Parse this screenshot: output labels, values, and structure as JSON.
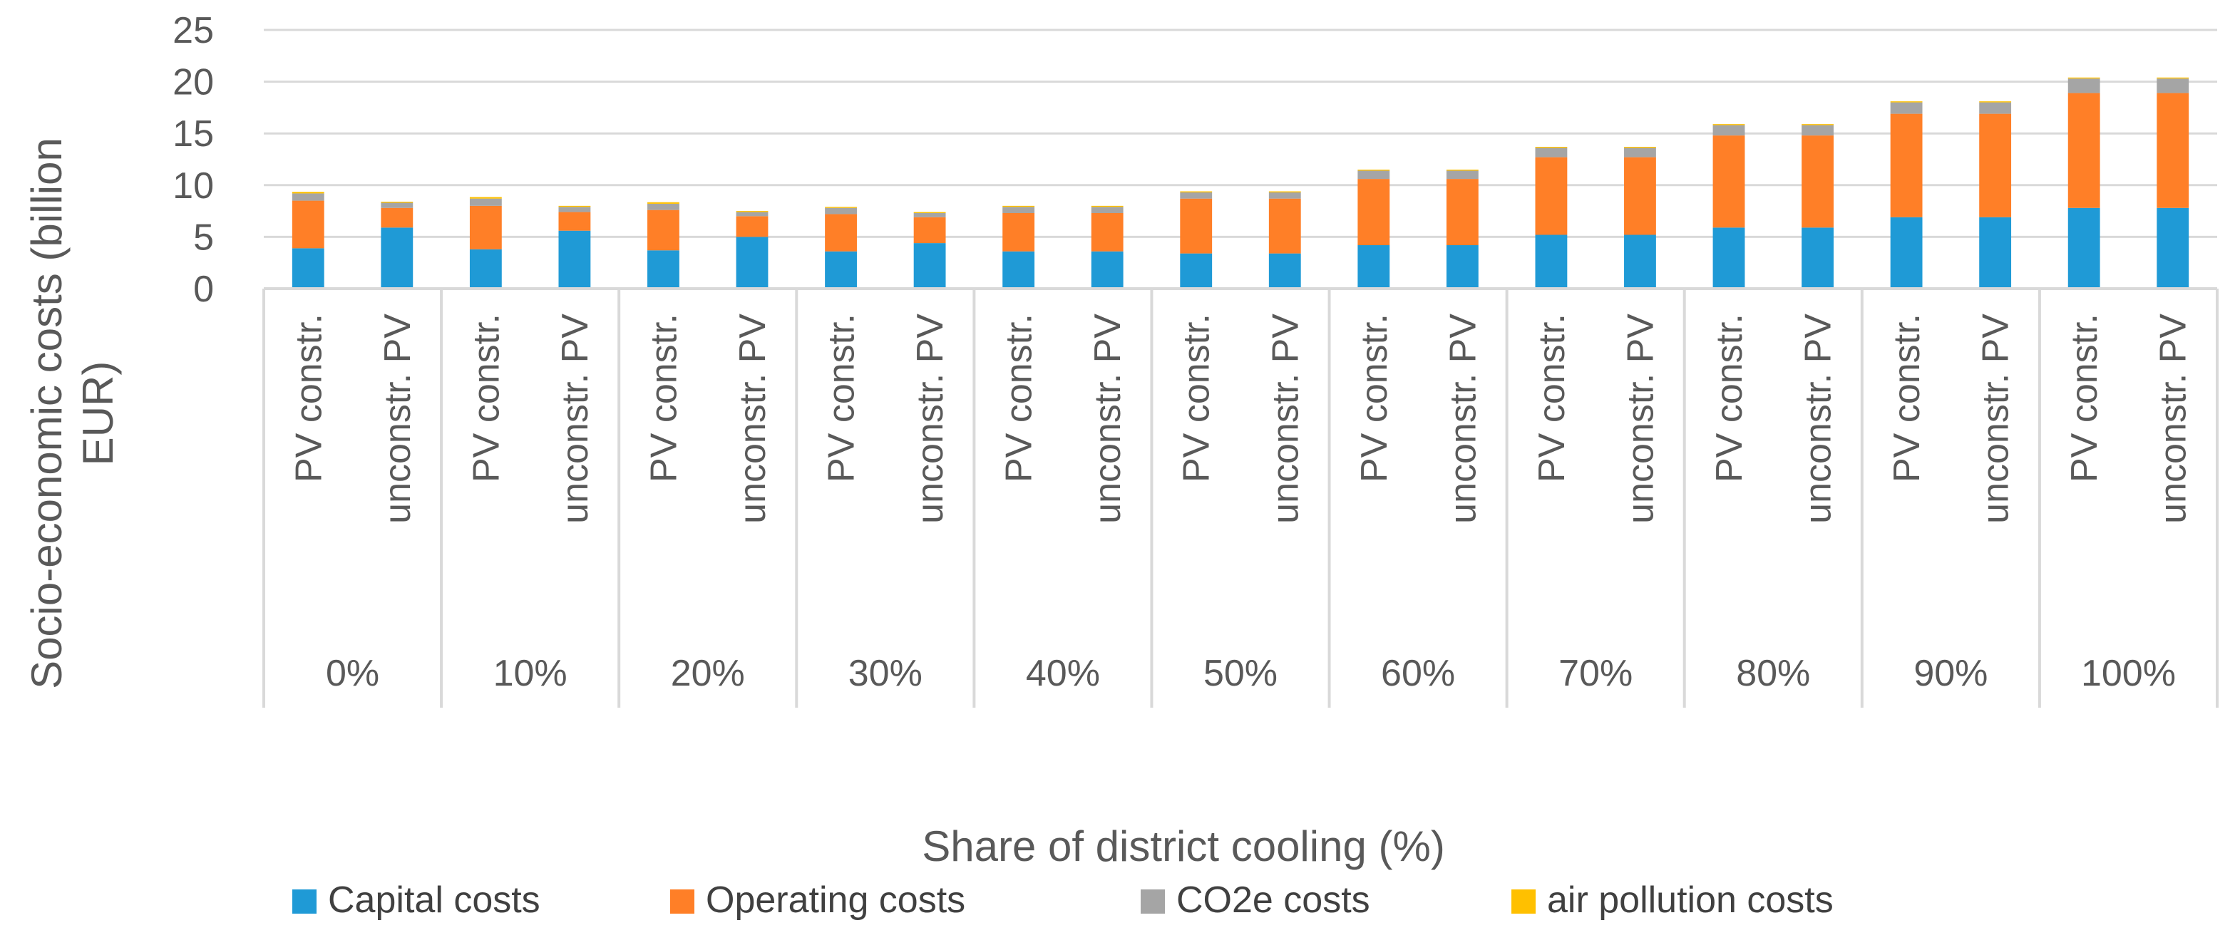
{
  "chart_data": {
    "type": "bar",
    "stacked": true,
    "title": "",
    "xlabel": "Share of district cooling (%)",
    "ylabel": "Socio-economic costs (billion EUR)",
    "ylim": [
      0,
      25
    ],
    "yticks": [
      0,
      5,
      10,
      15,
      20,
      25
    ],
    "grid": true,
    "legend_position": "bottom",
    "groups": [
      "0%",
      "10%",
      "20%",
      "30%",
      "40%",
      "50%",
      "60%",
      "70%",
      "80%",
      "90%",
      "100%"
    ],
    "subcategories": [
      "PV constr.",
      "unconstr. PV"
    ],
    "series": [
      {
        "name": "Capital costs",
        "color": "#1f9ad6",
        "values": [
          3.9,
          5.9,
          3.8,
          5.6,
          3.7,
          5.0,
          3.6,
          4.4,
          3.6,
          3.6,
          3.4,
          3.4,
          4.2,
          4.2,
          5.2,
          5.2,
          5.9,
          5.9,
          6.9,
          6.9,
          7.8,
          7.8
        ]
      },
      {
        "name": "Operating costs",
        "color": "#ff7f27",
        "values": [
          4.6,
          1.9,
          4.2,
          1.8,
          3.9,
          2.0,
          3.6,
          2.5,
          3.7,
          3.7,
          5.3,
          5.3,
          6.4,
          6.4,
          7.5,
          7.5,
          8.9,
          8.9,
          10.0,
          10.0,
          11.1,
          11.1
        ]
      },
      {
        "name": "CO2e costs",
        "color": "#a5a5a5",
        "values": [
          0.7,
          0.5,
          0.7,
          0.5,
          0.6,
          0.4,
          0.6,
          0.4,
          0.6,
          0.6,
          0.6,
          0.6,
          0.8,
          0.8,
          0.9,
          0.9,
          1.0,
          1.0,
          1.1,
          1.1,
          1.4,
          1.4
        ]
      },
      {
        "name": "air pollution costs",
        "color": "#ffc000",
        "values": [
          0.15,
          0.1,
          0.15,
          0.1,
          0.15,
          0.1,
          0.1,
          0.1,
          0.1,
          0.1,
          0.1,
          0.1,
          0.1,
          0.1,
          0.1,
          0.1,
          0.1,
          0.1,
          0.1,
          0.1,
          0.1,
          0.1
        ]
      }
    ]
  }
}
